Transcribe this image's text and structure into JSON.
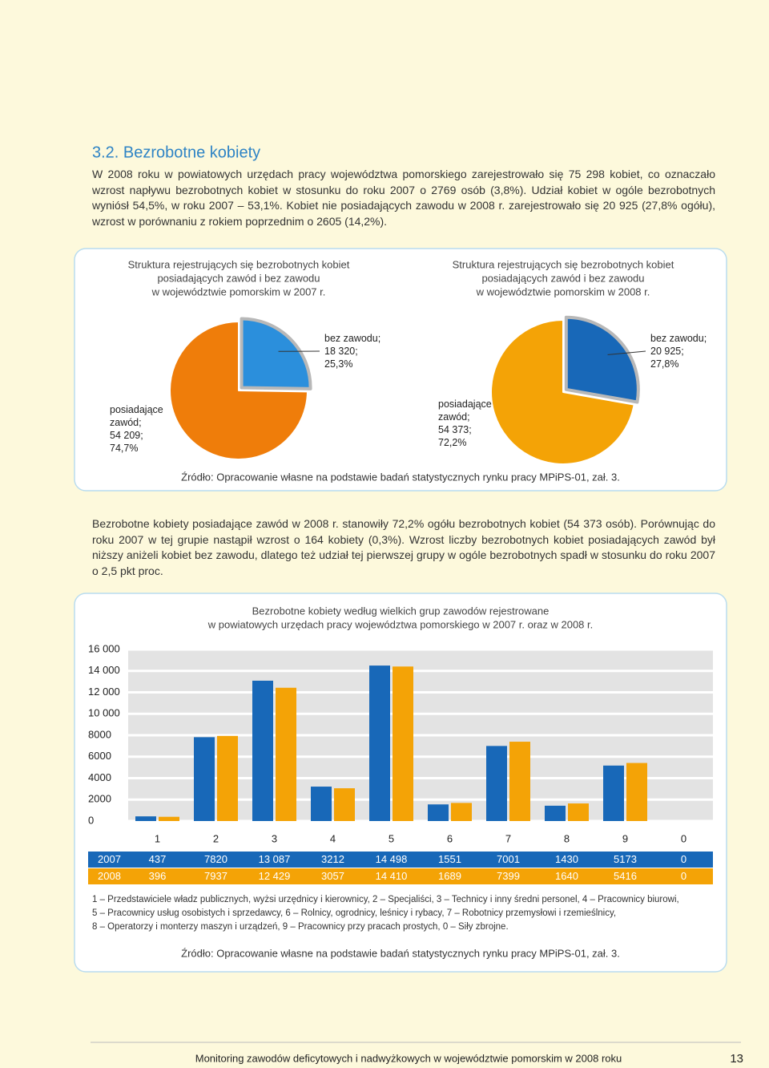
{
  "section_title": "3.2. Bezrobotne kobiety",
  "paragraphs": [
    "W 2008 roku w powiatowych urzędach pracy województwa pomorskiego zarejestrowało się 75 298 kobiet, co oznaczało wzrost napływu bezrobotnych kobiet w stosunku do roku 2007 o 2769 osób (3,8%). Udział kobiet w ogóle bezrobotnych wyniósł 54,5%, w roku 2007 – 53,1%. Kobiet nie posiadających zawodu w 2008 r. zarejestrowało się 20 925 (27,8% ogółu), wzrost w porównaniu z rokiem poprzednim o 2605 (14,2%).",
    "Bezrobotne kobiety posiadające zawód w 2008 r. stanowiły 72,2% ogółu bezrobotnych kobiet (54 373 osób). Porównując do roku 2007 w tej grupie nastąpił wzrost o 164 kobiety (0,3%). Wzrost liczby bezrobotnych kobiet posiadających zawód był niższy aniżeli kobiet bez zawodu, dlatego też udział tej pierwszej grupy w ogóle bezrobotnych spadł w stosunku do roku 2007 o 2,5 pkt proc."
  ],
  "chart_data": [
    {
      "type": "pie",
      "title": [
        "Struktura rejestrujących się bezrobotnych kobiet",
        "posiadających zawód i bez zawodu",
        "w województwie pomorskim w 2007 r."
      ],
      "categories": [
        "bez zawodu;",
        "posiadające zawód;"
      ],
      "values": [
        18320,
        54209
      ],
      "value_labels": [
        "18 320;",
        "54 209;"
      ],
      "percents": [
        25.3,
        74.7
      ],
      "percent_labels": [
        "25,3%",
        "74,7%"
      ],
      "colors": [
        "#2b8fdc",
        "#ef7d0a"
      ]
    },
    {
      "type": "pie",
      "title": [
        "Struktura rejestrujących się bezrobotnych kobiet",
        "posiadających zawód i bez zawodu",
        "w województwie pomorskim w 2008 r."
      ],
      "categories": [
        "bez zawodu;",
        "posiadające zawód;"
      ],
      "values": [
        20925,
        54373
      ],
      "value_labels": [
        "20 925;",
        "54 373;"
      ],
      "percents": [
        27.8,
        72.2
      ],
      "percent_labels": [
        "27,8%",
        "72,2%"
      ],
      "colors": [
        "#1868b8",
        "#f4a306"
      ]
    },
    {
      "type": "bar",
      "title": [
        "Bezrobotne kobiety według wielkich grup zawodów rejestrowane",
        "w powiatowych urzędach pracy województwa pomorskiego w 2007 r. oraz w 2008 r."
      ],
      "categories": [
        "1",
        "2",
        "3",
        "4",
        "5",
        "6",
        "7",
        "8",
        "9",
        "0"
      ],
      "series": [
        {
          "name": "2007",
          "color": "#1868b8",
          "values": [
            437,
            7820,
            13087,
            3212,
            14498,
            1551,
            7001,
            1430,
            5173,
            0
          ],
          "value_labels": [
            "437",
            "7820",
            "13 087",
            "3212",
            "14 498",
            "1551",
            "7001",
            "1430",
            "5173",
            "0"
          ]
        },
        {
          "name": "2008",
          "color": "#f4a306",
          "values": [
            396,
            7937,
            12429,
            3057,
            14410,
            1689,
            7399,
            1640,
            5416,
            0
          ],
          "value_labels": [
            "396",
            "7937",
            "12 429",
            "3057",
            "14 410",
            "1689",
            "7399",
            "1640",
            "5416",
            "0"
          ]
        }
      ],
      "ylim": [
        0,
        16000
      ],
      "yticks": [
        0,
        2000,
        4000,
        6000,
        8000,
        {
          "value": 10000,
          "label": "10 000"
        },
        {
          "value": 12000,
          "label": "12 000"
        },
        {
          "value": 14000,
          "label": "14 000"
        },
        {
          "value": 16000,
          "label": "16 000"
        }
      ],
      "grid": true
    }
  ],
  "sources": [
    "Źródło: Opracowanie własne na podstawie badań statystycznych rynku pracy MPiPS-01, zał. 3.",
    "Źródło: Opracowanie własne na podstawie badań statystycznych rynku pracy MPiPS-01, zał. 3."
  ],
  "legend_note": [
    "1 – Przedstawiciele władz publicznych, wyżsi urzędnicy i kierownicy, 2 – Specjaliści, 3 – Technicy i inny średni personel, 4 – Pracownicy biurowi,",
    "5 – Pracownicy usług osobistych i sprzedawcy, 6 – Rolnicy, ogrodnicy, leśnicy i rybacy, 7 – Robotnicy przemysłowi i rzemieślnicy,",
    "8 – Operatorzy i monterzy maszyn i urządzeń, 9 – Pracownicy przy pracach prostych, 0 – Siły zbrojne."
  ],
  "footer": {
    "text": "Monitoring zawodów deficytowych i nadwyżkowych w województwie pomorskim w 2008 roku",
    "page": "13"
  }
}
